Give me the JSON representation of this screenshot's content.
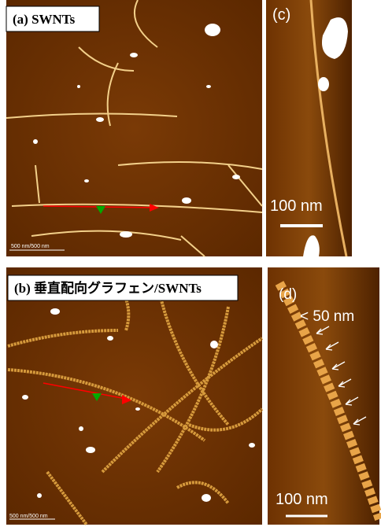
{
  "panels": [
    {
      "label": "(a) SWNTs",
      "scale_text": "500 nm/500 nm"
    },
    {
      "label": "(c)",
      "scale_bar": "100 nm"
    },
    {
      "label": "(b) 垂直配向グラフェン/SWNTs",
      "scale_text": "500 nm/500 nm"
    },
    {
      "label": "(d)",
      "annotation": "< 50 nm",
      "scale_bar": "100 nm"
    }
  ]
}
